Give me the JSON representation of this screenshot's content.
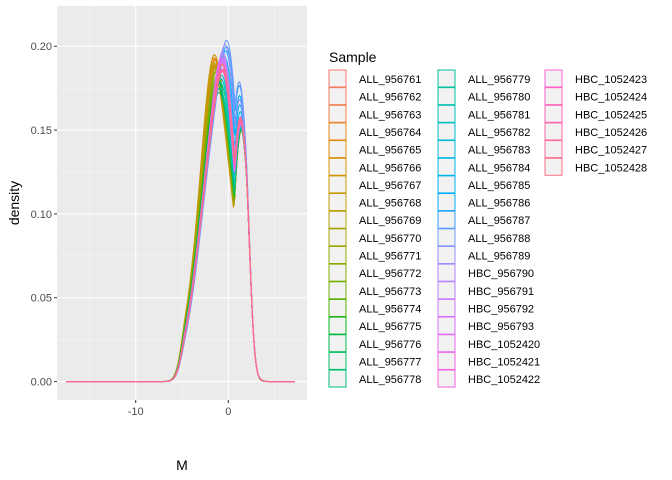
{
  "chart_data": {
    "type": "line",
    "subtype": "density",
    "title": "",
    "xlabel": "M",
    "ylabel": "density",
    "xlim": [
      -18.5,
      8.5
    ],
    "ylim": [
      -0.011,
      0.224
    ],
    "x_ticks": [
      -10,
      0
    ],
    "x_tick_labels": [
      "-10",
      "0"
    ],
    "y_ticks": [
      0.0,
      0.05,
      0.1,
      0.15,
      0.2
    ],
    "y_tick_labels": [
      "0.00",
      "0.05",
      "0.10",
      "0.15",
      "0.20"
    ],
    "grid": true,
    "legend": {
      "title": "Sample",
      "placement": "right",
      "columns": 3
    },
    "series": [
      {
        "name": "ALL_956761",
        "color": "#F8766D",
        "peak": 0.186,
        "shift": -1.2
      },
      {
        "name": "ALL_956762",
        "color": "#F37B59",
        "peak": 0.19,
        "shift": -1.1
      },
      {
        "name": "ALL_956763",
        "color": "#ED8141",
        "peak": 0.188,
        "shift": -1.3
      },
      {
        "name": "ALL_956764",
        "color": "#E7861B",
        "peak": 0.193,
        "shift": -1.4
      },
      {
        "name": "ALL_956765",
        "color": "#DF8C00",
        "peak": 0.191,
        "shift": -1.2
      },
      {
        "name": "ALL_956766",
        "color": "#D59100",
        "peak": 0.189,
        "shift": -1.5
      },
      {
        "name": "ALL_956767",
        "color": "#CB9600",
        "peak": 0.194,
        "shift": -1.3
      },
      {
        "name": "ALL_956768",
        "color": "#BF9B00",
        "peak": 0.187,
        "shift": -1.1
      },
      {
        "name": "ALL_956769",
        "color": "#B3A000",
        "peak": 0.19,
        "shift": -1.4
      },
      {
        "name": "ALL_956770",
        "color": "#A5A400",
        "peak": 0.185,
        "shift": -1.0
      },
      {
        "name": "ALL_956771",
        "color": "#95A900",
        "peak": 0.183,
        "shift": -0.9
      },
      {
        "name": "ALL_956772",
        "color": "#83AD00",
        "peak": 0.182,
        "shift": -1.0
      },
      {
        "name": "ALL_956773",
        "color": "#6BB100",
        "peak": 0.18,
        "shift": -0.8
      },
      {
        "name": "ALL_956774",
        "color": "#4BB400",
        "peak": 0.178,
        "shift": -0.7
      },
      {
        "name": "ALL_956775",
        "color": "#00B81F",
        "peak": 0.176,
        "shift": -0.6
      },
      {
        "name": "ALL_956776",
        "color": "#00BA4A",
        "peak": 0.172,
        "shift": -0.5
      },
      {
        "name": "ALL_956777",
        "color": "#00BD65",
        "peak": 0.17,
        "shift": -0.4
      },
      {
        "name": "ALL_956778",
        "color": "#00BF7C",
        "peak": 0.175,
        "shift": -0.5
      },
      {
        "name": "ALL_956779",
        "color": "#00C091",
        "peak": 0.173,
        "shift": -0.3
      },
      {
        "name": "ALL_956780",
        "color": "#00C1A5",
        "peak": 0.177,
        "shift": -0.2
      },
      {
        "name": "ALL_956781",
        "color": "#00C0B8",
        "peak": 0.18,
        "shift": -0.1
      },
      {
        "name": "ALL_956782",
        "color": "#00BFC9",
        "peak": 0.183,
        "shift": 0.0
      },
      {
        "name": "ALL_956783",
        "color": "#00BCD9",
        "peak": 0.188,
        "shift": 0.2
      },
      {
        "name": "ALL_956784",
        "color": "#00B8E7",
        "peak": 0.195,
        "shift": 0.3
      },
      {
        "name": "ALL_956785",
        "color": "#00B2F3",
        "peak": 0.2,
        "shift": 0.4
      },
      {
        "name": "ALL_956786",
        "color": "#00ACFC",
        "peak": 0.206,
        "shift": 0.5
      },
      {
        "name": "ALL_956787",
        "color": "#35A2FF",
        "peak": 0.211,
        "shift": 0.6
      },
      {
        "name": "ALL_956788",
        "color": "#7399FF",
        "peak": 0.215,
        "shift": 0.6
      },
      {
        "name": "ALL_956789",
        "color": "#938FFF",
        "peak": 0.208,
        "shift": 0.4
      },
      {
        "name": "HBC_956790",
        "color": "#AC87FF",
        "peak": 0.199,
        "shift": 0.1
      },
      {
        "name": "HBC_956791",
        "color": "#BF80FF",
        "peak": 0.196,
        "shift": 0.0
      },
      {
        "name": "HBC_956792",
        "color": "#D077FF",
        "peak": 0.193,
        "shift": -0.1
      },
      {
        "name": "HBC_956793",
        "color": "#DD71FA",
        "peak": 0.191,
        "shift": -0.2
      },
      {
        "name": "HBC_1052420",
        "color": "#E86BF1",
        "peak": 0.194,
        "shift": 0.0
      },
      {
        "name": "HBC_1052421",
        "color": "#F166E8",
        "peak": 0.19,
        "shift": -0.1
      },
      {
        "name": "HBC_1052422",
        "color": "#F862DC",
        "peak": 0.188,
        "shift": 0.1
      },
      {
        "name": "HBC_1052423",
        "color": "#FD61D1",
        "peak": 0.186,
        "shift": 0.0
      },
      {
        "name": "HBC_1052424",
        "color": "#FF61C3",
        "peak": 0.189,
        "shift": 0.2
      },
      {
        "name": "HBC_1052425",
        "color": "#FF63B5",
        "peak": 0.187,
        "shift": 0.1
      },
      {
        "name": "HBC_1052426",
        "color": "#FF66A7",
        "peak": 0.19,
        "shift": 0.0
      },
      {
        "name": "HBC_1052427",
        "color": "#FF6A97",
        "peak": 0.188,
        "shift": 0.2
      },
      {
        "name": "HBC_1052428",
        "color": "#FC6F87",
        "peak": 0.191,
        "shift": 0.1
      }
    ]
  }
}
